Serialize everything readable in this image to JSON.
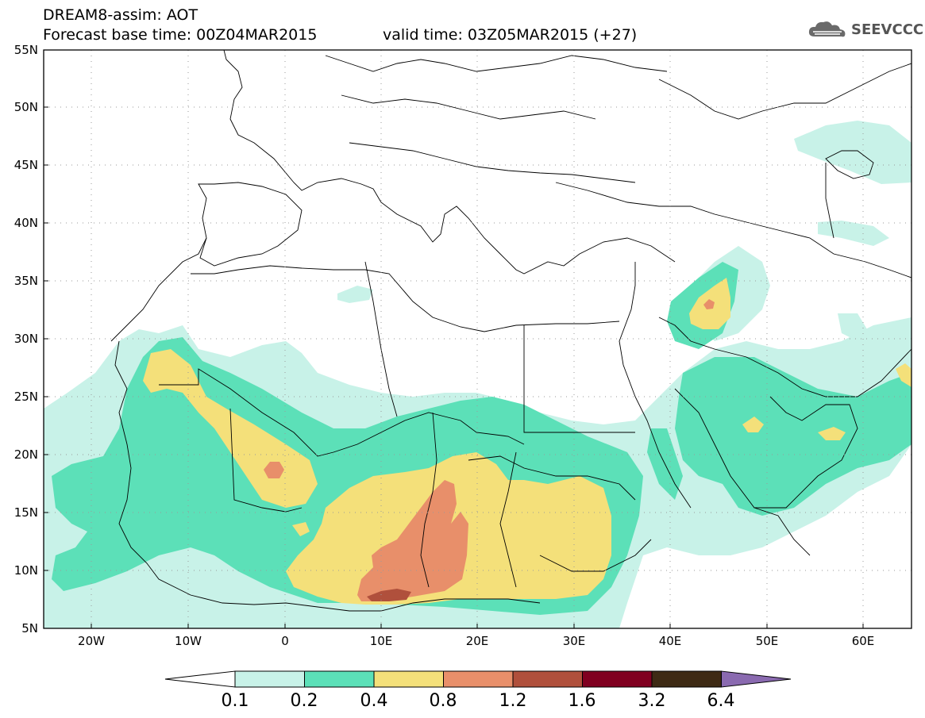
{
  "title": {
    "line1": "DREAM8-assim: AOT",
    "base_time": "Forecast base time: 00Z04MAR2015",
    "valid_time": "valid time: 03Z05MAR2015 (+27)"
  },
  "logo": {
    "text": "SEEVCCC",
    "icon": "cloud-icon"
  },
  "chart_data": {
    "type": "heatmap",
    "variable": "AOT",
    "lon_range": [
      -25,
      65
    ],
    "lat_range": [
      5,
      55
    ],
    "lat_ticks": [
      "5N",
      "10N",
      "15N",
      "20N",
      "25N",
      "30N",
      "35N",
      "40N",
      "45N",
      "50N",
      "55N"
    ],
    "lon_ticks": [
      "20W",
      "10W",
      "0",
      "10E",
      "20E",
      "30E",
      "40E",
      "50E",
      "60E"
    ],
    "colorbar": {
      "levels": [
        "0.1",
        "0.2",
        "0.4",
        "0.8",
        "1.2",
        "1.6",
        "3.2",
        "6.4"
      ],
      "colors": [
        "#ffffff",
        "#c8f2e8",
        "#5ce0b8",
        "#f4e07a",
        "#e88f6a",
        "#b0503c",
        "#800020",
        "#3e2a14",
        "#8a6ab0"
      ]
    },
    "grid": true
  }
}
